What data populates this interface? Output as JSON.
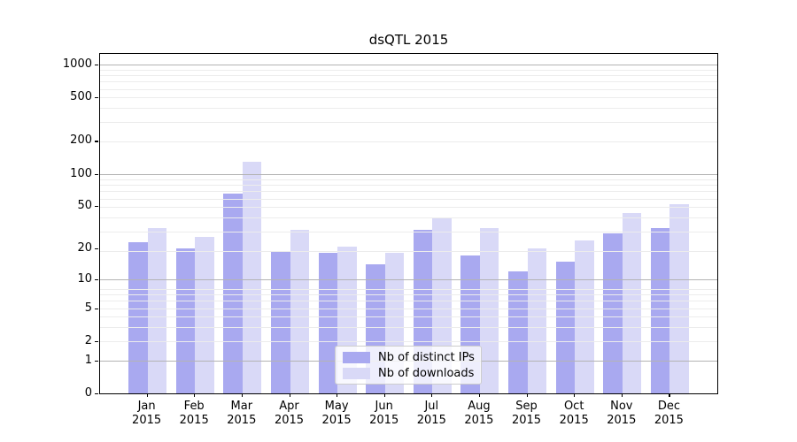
{
  "title": "dsQTL 2015",
  "chart_data": {
    "type": "bar",
    "title": "dsQTL 2015",
    "categories": [
      "Jan",
      "Feb",
      "Mar",
      "Apr",
      "May",
      "Jun",
      "Jul",
      "Aug",
      "Sep",
      "Oct",
      "Nov",
      "Dec"
    ],
    "category_year": "2015",
    "series": [
      {
        "name": "Nb of distinct IPs",
        "color": "#a9a9f0",
        "values": [
          23,
          20,
          66,
          19,
          18,
          14,
          30,
          17,
          12,
          15,
          28,
          31
        ]
      },
      {
        "name": "Nb of downloads",
        "color": "#d9d9f7",
        "values": [
          31,
          26,
          130,
          30,
          21,
          18,
          39,
          31,
          20,
          24,
          43,
          52
        ]
      }
    ],
    "yscale": "log1p",
    "y_ticks": [
      0,
      1,
      2,
      5,
      10,
      20,
      50,
      100,
      200,
      500,
      1000
    ],
    "ylim": [
      0,
      1250
    ],
    "grid": true,
    "legend_position": "lower center"
  }
}
